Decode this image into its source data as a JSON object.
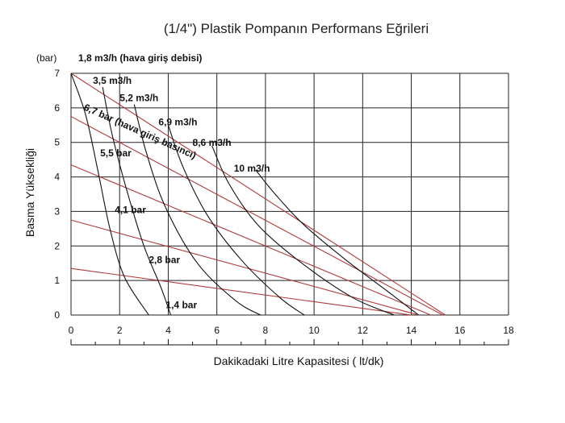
{
  "chart_data": {
    "type": "line",
    "title": "(1/4\") Plastik Pompanın Performans Eğrileri",
    "xlabel": "Dakikadaki Litre Kapasitesi ( lt/dk)",
    "ylabel": "Basma Yüksekliği",
    "y_unit": "(bar)",
    "xlim": [
      0,
      18
    ],
    "ylim": [
      0,
      7
    ],
    "x_ticks": [
      "0",
      "2",
      "4",
      "6",
      "8",
      "10",
      "12",
      "14",
      "16",
      "18"
    ],
    "y_ticks": [
      "0",
      "1",
      "2",
      "3",
      "4",
      "5",
      "6",
      "7"
    ],
    "grid": true,
    "air_flow_series": [
      {
        "name": "1,8 m3/h (hava giriş debisi)",
        "color": "#111111",
        "points": [
          [
            0,
            7
          ],
          [
            0.6,
            5.8
          ],
          [
            1.1,
            4.2
          ],
          [
            1.6,
            2.5
          ],
          [
            2.2,
            1.1
          ],
          [
            3.2,
            0
          ]
        ]
      },
      {
        "name": "3,5 m3/h",
        "color": "#111111",
        "points": [
          [
            1.3,
            6.6
          ],
          [
            1.7,
            5.2
          ],
          [
            2.3,
            3.6
          ],
          [
            3.0,
            2.0
          ],
          [
            3.7,
            0.8
          ],
          [
            4.1,
            0
          ]
        ]
      },
      {
        "name": "5,2 m3/h",
        "color": "#111111",
        "points": [
          [
            2.6,
            6.1
          ],
          [
            3.1,
            4.7
          ],
          [
            3.9,
            3.1
          ],
          [
            5.2,
            1.5
          ],
          [
            6.8,
            0.4
          ],
          [
            7.8,
            0
          ]
        ]
      },
      {
        "name": "6,9 m3/h",
        "color": "#111111",
        "points": [
          [
            4.0,
            5.5
          ],
          [
            4.6,
            4.3
          ],
          [
            5.6,
            2.9
          ],
          [
            7.0,
            1.6
          ],
          [
            8.6,
            0.5
          ],
          [
            9.6,
            0
          ]
        ]
      },
      {
        "name": "8,6 m3/h",
        "color": "#111111",
        "points": [
          [
            5.8,
            4.9
          ],
          [
            6.5,
            3.8
          ],
          [
            7.7,
            2.6
          ],
          [
            9.5,
            1.5
          ],
          [
            11.6,
            0.5
          ],
          [
            13.3,
            0
          ]
        ]
      },
      {
        "name": "10 m3/h",
        "color": "#111111",
        "points": [
          [
            7.6,
            4.2
          ],
          [
            8.4,
            3.5
          ],
          [
            9.6,
            2.6
          ],
          [
            11.3,
            1.6
          ],
          [
            13.0,
            0.7
          ],
          [
            14.3,
            0
          ]
        ]
      }
    ],
    "pressure_series": [
      {
        "name": "1,4 bar",
        "color": "#b03a3a",
        "points": [
          [
            0,
            1.35
          ],
          [
            14.0,
            0
          ]
        ]
      },
      {
        "name": "2,8 bar",
        "color": "#b03a3a",
        "points": [
          [
            0,
            2.75
          ],
          [
            14.3,
            0
          ]
        ]
      },
      {
        "name": "4,1 bar",
        "color": "#b03a3a",
        "points": [
          [
            0,
            4.35
          ],
          [
            14.8,
            0
          ]
        ]
      },
      {
        "name": "5,5 bar",
        "color": "#b03a3a",
        "points": [
          [
            0,
            5.75
          ],
          [
            15.3,
            0
          ]
        ]
      },
      {
        "name": "6,7 bar (hava giriş basıncı)",
        "color": "#b03a3a",
        "points": [
          [
            0,
            7
          ],
          [
            15.4,
            0
          ]
        ]
      }
    ],
    "annotations": [
      {
        "text": "1,8 m3/h (hava giriş debisi)",
        "x": 0.3,
        "y": 7.35,
        "angle": 0
      },
      {
        "text": "3,5 m3/h",
        "x": 0.9,
        "y": 6.7,
        "angle": 0
      },
      {
        "text": "5,2 m3/h",
        "x": 2.0,
        "y": 6.2,
        "angle": 0
      },
      {
        "text": "6,9 m3/h",
        "x": 3.6,
        "y": 5.5,
        "angle": 0
      },
      {
        "text": "8,6 m3/h",
        "x": 5.0,
        "y": 4.9,
        "angle": 0
      },
      {
        "text": "10 m3/h",
        "x": 6.7,
        "y": 4.15,
        "angle": 0
      },
      {
        "text": "6,7 bar (hava giriş basıncı)",
        "x": 0.5,
        "y": 5.95,
        "angle": 24
      },
      {
        "text": "5,5 bar",
        "x": 1.2,
        "y": 4.6,
        "angle": 0
      },
      {
        "text": "4,1 bar",
        "x": 1.8,
        "y": 2.95,
        "angle": 0
      },
      {
        "text": "2,8 bar",
        "x": 3.2,
        "y": 1.5,
        "angle": 0
      },
      {
        "text": "1,4 bar",
        "x": 3.9,
        "y": 0.2,
        "angle": 0
      }
    ]
  }
}
